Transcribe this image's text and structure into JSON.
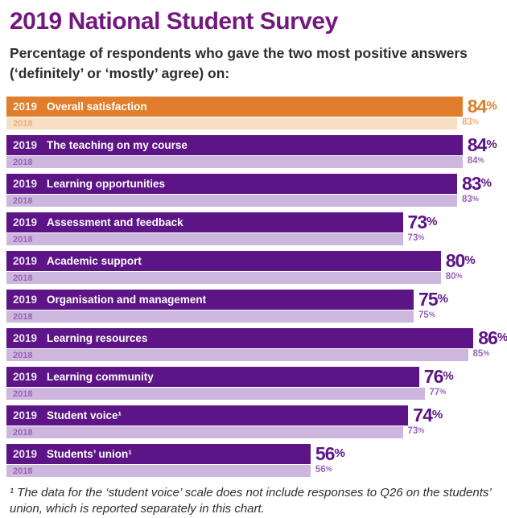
{
  "page": {
    "title": "2019 National Student Survey",
    "subtitle_line1": "Percentage of respondents who gave the two most positive answers",
    "subtitle_line2": "(‘definitely’ or ‘mostly’ agree) on:",
    "footnote": "¹ The data for the ‘student voice’ scale does not include responses to Q26 on the students’ union, which is reported separately in this chart."
  },
  "colors": {
    "title": "#72187E",
    "orange_2019": "#E07E2D",
    "orange_2018_bar": "#F8DFC3",
    "orange_2018_text": "#EBAE77",
    "purple_2019": "#5C1486",
    "purple_2018_bar": "#CDB7DF",
    "purple_2018_text": "#9A63B5"
  },
  "chart_data": {
    "type": "bar",
    "orientation": "horizontal",
    "value_unit": "%",
    "scale_max": 91,
    "legend_position": "none",
    "grid": false,
    "series_names": [
      "2019",
      "2018"
    ],
    "categories": [
      "Overall satisfaction",
      "The teaching on my course",
      "Learning opportunities",
      "Assessment and feedback",
      "Academic support",
      "Organisation and management",
      "Learning resources",
      "Learning community",
      "Student voice¹",
      "Students’ union¹"
    ],
    "series": [
      {
        "name": "2019",
        "values": [
          84,
          84,
          83,
          73,
          80,
          75,
          86,
          76,
          74,
          56
        ]
      },
      {
        "name": "2018",
        "values": [
          83,
          84,
          83,
          73,
          80,
          75,
          85,
          77,
          73,
          56
        ]
      }
    ],
    "highlight_row_index": 0,
    "highlight_style": "orange"
  }
}
